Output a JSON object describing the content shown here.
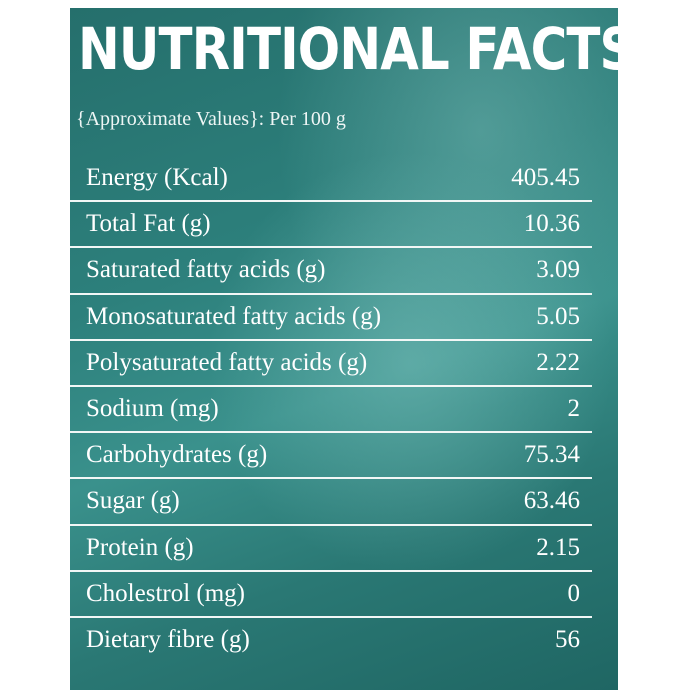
{
  "title": "NUTRITIONAL FACTS",
  "subtitle": "{Approximate Values}: Per 100 g",
  "rows": [
    {
      "label": "Energy (Kcal)",
      "value": "405.45"
    },
    {
      "label": "Total Fat (g)",
      "value": "10.36"
    },
    {
      "label": "Saturated fatty acids (g)",
      "value": "3.09"
    },
    {
      "label": "Monosaturated fatty acids (g)",
      "value": "5.05"
    },
    {
      "label": "Polysaturated fatty acids (g)",
      "value": "2.22"
    },
    {
      "label": "Sodium (mg)",
      "value": "2"
    },
    {
      "label": "Carbohydrates (g)",
      "value": "75.34"
    },
    {
      "label": "Sugar (g)",
      "value": "63.46"
    },
    {
      "label": "Protein (g)",
      "value": "2.15"
    },
    {
      "label": "Cholestrol (mg)",
      "value": "0"
    },
    {
      "label": "Dietary fibre (g)",
      "value": "56"
    }
  ],
  "colors": {
    "panel": "#2d807c",
    "text": "#ffffff"
  }
}
